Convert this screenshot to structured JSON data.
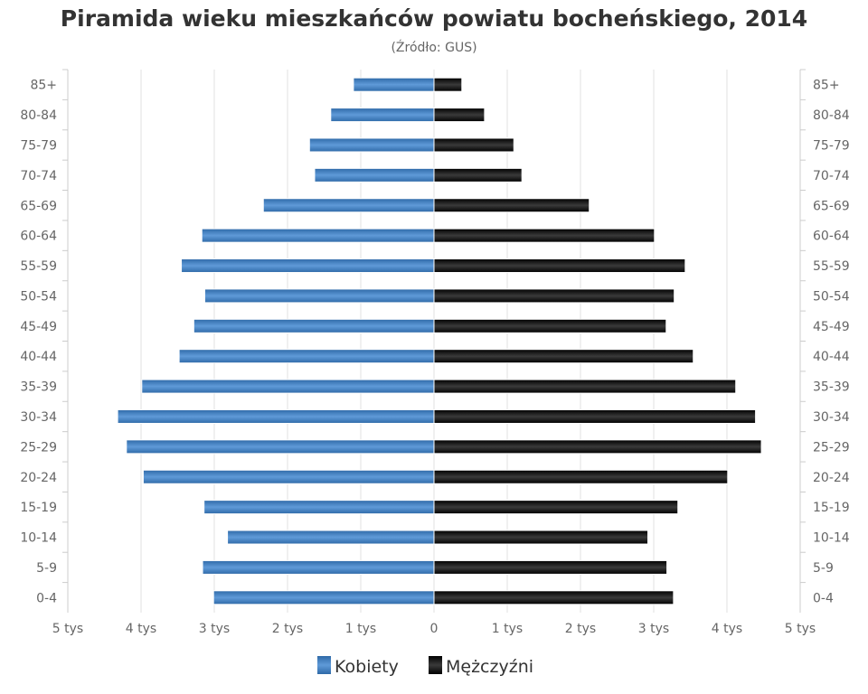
{
  "chart_data": {
    "type": "bar",
    "orientation": "horizontal-pyramid",
    "title": "Piramida wieku mieszkańców powiatu bocheńskiego, 2014",
    "subtitle": "(Źródło: GUS)",
    "categories": [
      "85+",
      "80-84",
      "75-79",
      "70-74",
      "65-69",
      "60-64",
      "55-59",
      "50-54",
      "45-49",
      "40-44",
      "35-39",
      "30-34",
      "25-29",
      "20-24",
      "15-19",
      "10-14",
      "5-9",
      "0-4"
    ],
    "series": [
      {
        "name": "Kobiety",
        "side": "left",
        "color": "#4a86c8",
        "values": [
          1100,
          1410,
          1700,
          1630,
          2330,
          3170,
          3450,
          3130,
          3280,
          3480,
          3990,
          4320,
          4200,
          3970,
          3140,
          2820,
          3160,
          3010
        ]
      },
      {
        "name": "Mężczyźni",
        "side": "right",
        "color": "#1a1a1a",
        "values": [
          380,
          690,
          1090,
          1200,
          2120,
          3010,
          3430,
          3280,
          3170,
          3540,
          4120,
          4390,
          4470,
          4010,
          3330,
          2920,
          3180,
          3270
        ]
      }
    ],
    "xlim": [
      -5000,
      5000
    ],
    "xticks": [
      -5000,
      -4000,
      -3000,
      -2000,
      -1000,
      0,
      1000,
      2000,
      3000,
      4000,
      5000
    ],
    "xtick_labels": [
      "5 tys",
      "4 tys",
      "3 tys",
      "2 tys",
      "1 tys",
      "0",
      "1 tys",
      "2 tys",
      "3 tys",
      "4 tys",
      "5 tys"
    ],
    "grid": true,
    "legend": "bottom-center"
  }
}
